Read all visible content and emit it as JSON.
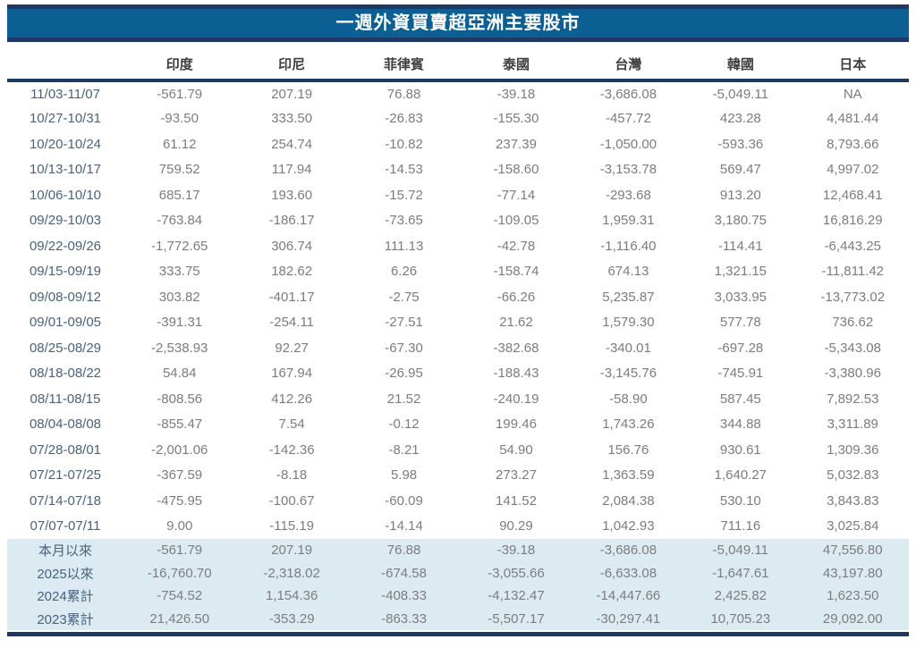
{
  "chart_data": {
    "type": "table",
    "title": "一週外資買賣超亞洲主要股市",
    "column_headers": [
      "印度",
      "印尼",
      "菲律賓",
      "泰國",
      "台灣",
      "韓國",
      "日本"
    ],
    "weekly_rows": [
      {
        "label": "11/03-11/07",
        "values": [
          "-561.79",
          "207.19",
          "76.88",
          "-39.18",
          "-3,686.08",
          "-5,049.11",
          "NA"
        ]
      },
      {
        "label": "10/27-10/31",
        "values": [
          "-93.50",
          "333.50",
          "-26.83",
          "-155.30",
          "-457.72",
          "423.28",
          "4,481.44"
        ]
      },
      {
        "label": "10/20-10/24",
        "values": [
          "61.12",
          "254.74",
          "-10.82",
          "237.39",
          "-1,050.00",
          "-593.36",
          "8,793.66"
        ]
      },
      {
        "label": "10/13-10/17",
        "values": [
          "759.52",
          "117.94",
          "-14.53",
          "-158.60",
          "-3,153.78",
          "569.47",
          "4,997.02"
        ]
      },
      {
        "label": "10/06-10/10",
        "values": [
          "685.17",
          "193.60",
          "-15.72",
          "-77.14",
          "-293.68",
          "913.20",
          "12,468.41"
        ]
      },
      {
        "label": "09/29-10/03",
        "values": [
          "-763.84",
          "-186.17",
          "-73.65",
          "-109.05",
          "1,959.31",
          "3,180.75",
          "16,816.29"
        ]
      },
      {
        "label": "09/22-09/26",
        "values": [
          "-1,772.65",
          "306.74",
          "111.13",
          "-42.78",
          "-1,116.40",
          "-114.41",
          "-6,443.25"
        ]
      },
      {
        "label": "09/15-09/19",
        "values": [
          "333.75",
          "182.62",
          "6.26",
          "-158.74",
          "674.13",
          "1,321.15",
          "-11,811.42"
        ]
      },
      {
        "label": "09/08-09/12",
        "values": [
          "303.82",
          "-401.17",
          "-2.75",
          "-66.26",
          "5,235.87",
          "3,033.95",
          "-13,773.02"
        ]
      },
      {
        "label": "09/01-09/05",
        "values": [
          "-391.31",
          "-254.11",
          "-27.51",
          "21.62",
          "1,579.30",
          "577.78",
          "736.62"
        ]
      },
      {
        "label": "08/25-08/29",
        "values": [
          "-2,538.93",
          "92.27",
          "-67.30",
          "-382.68",
          "-340.01",
          "-697.28",
          "-5,343.08"
        ]
      },
      {
        "label": "08/18-08/22",
        "values": [
          "54.84",
          "167.94",
          "-26.95",
          "-188.43",
          "-3,145.76",
          "-745.91",
          "-3,380.96"
        ]
      },
      {
        "label": "08/11-08/15",
        "values": [
          "-808.56",
          "412.26",
          "21.52",
          "-240.19",
          "-58.90",
          "587.45",
          "7,892.53"
        ]
      },
      {
        "label": "08/04-08/08",
        "values": [
          "-855.47",
          "7.54",
          "-0.12",
          "199.46",
          "1,743.26",
          "344.88",
          "3,311.89"
        ]
      },
      {
        "label": "07/28-08/01",
        "values": [
          "-2,001.06",
          "-142.36",
          "-8.21",
          "54.90",
          "156.76",
          "930.61",
          "1,309.36"
        ]
      },
      {
        "label": "07/21-07/25",
        "values": [
          "-367.59",
          "-8.18",
          "5.98",
          "273.27",
          "1,363.59",
          "1,640.27",
          "5,032.83"
        ]
      },
      {
        "label": "07/14-07/18",
        "values": [
          "-475.95",
          "-100.67",
          "-60.09",
          "141.52",
          "2,084.38",
          "530.10",
          "3,843.83"
        ]
      },
      {
        "label": "07/07-07/11",
        "values": [
          "9.00",
          "-115.19",
          "-14.14",
          "90.29",
          "1,042.93",
          "711.16",
          "3,025.84"
        ]
      }
    ],
    "summary_rows": [
      {
        "label": "本月以來",
        "values": [
          "-561.79",
          "207.19",
          "76.88",
          "-39.18",
          "-3,686.08",
          "-5,049.11",
          "47,556.80"
        ]
      },
      {
        "label": "2025以來",
        "values": [
          "-16,760.70",
          "-2,318.02",
          "-674.58",
          "-3,055.66",
          "-6,633.08",
          "-1,647.61",
          "43,197.80"
        ]
      },
      {
        "label": "2024累計",
        "values": [
          "-754.52",
          "1,154.36",
          "-408.33",
          "-4,132.47",
          "-14,447.66",
          "2,425.82",
          "1,623.50"
        ]
      },
      {
        "label": "2023累計",
        "values": [
          "21,426.50",
          "-353.29",
          "-863.33",
          "-5,507.17",
          "-30,297.41",
          "10,705.23",
          "29,092.00"
        ]
      }
    ]
  },
  "colors": {
    "banner_blue": "#0C5F93",
    "border_navy": "#1F3864",
    "summary_row_bg": "#DCEBF2",
    "label_text": "#4A627C",
    "number_text": "#7C7C7C",
    "header_text": "#3F3F3F",
    "title_text": "#FFFFFF"
  }
}
